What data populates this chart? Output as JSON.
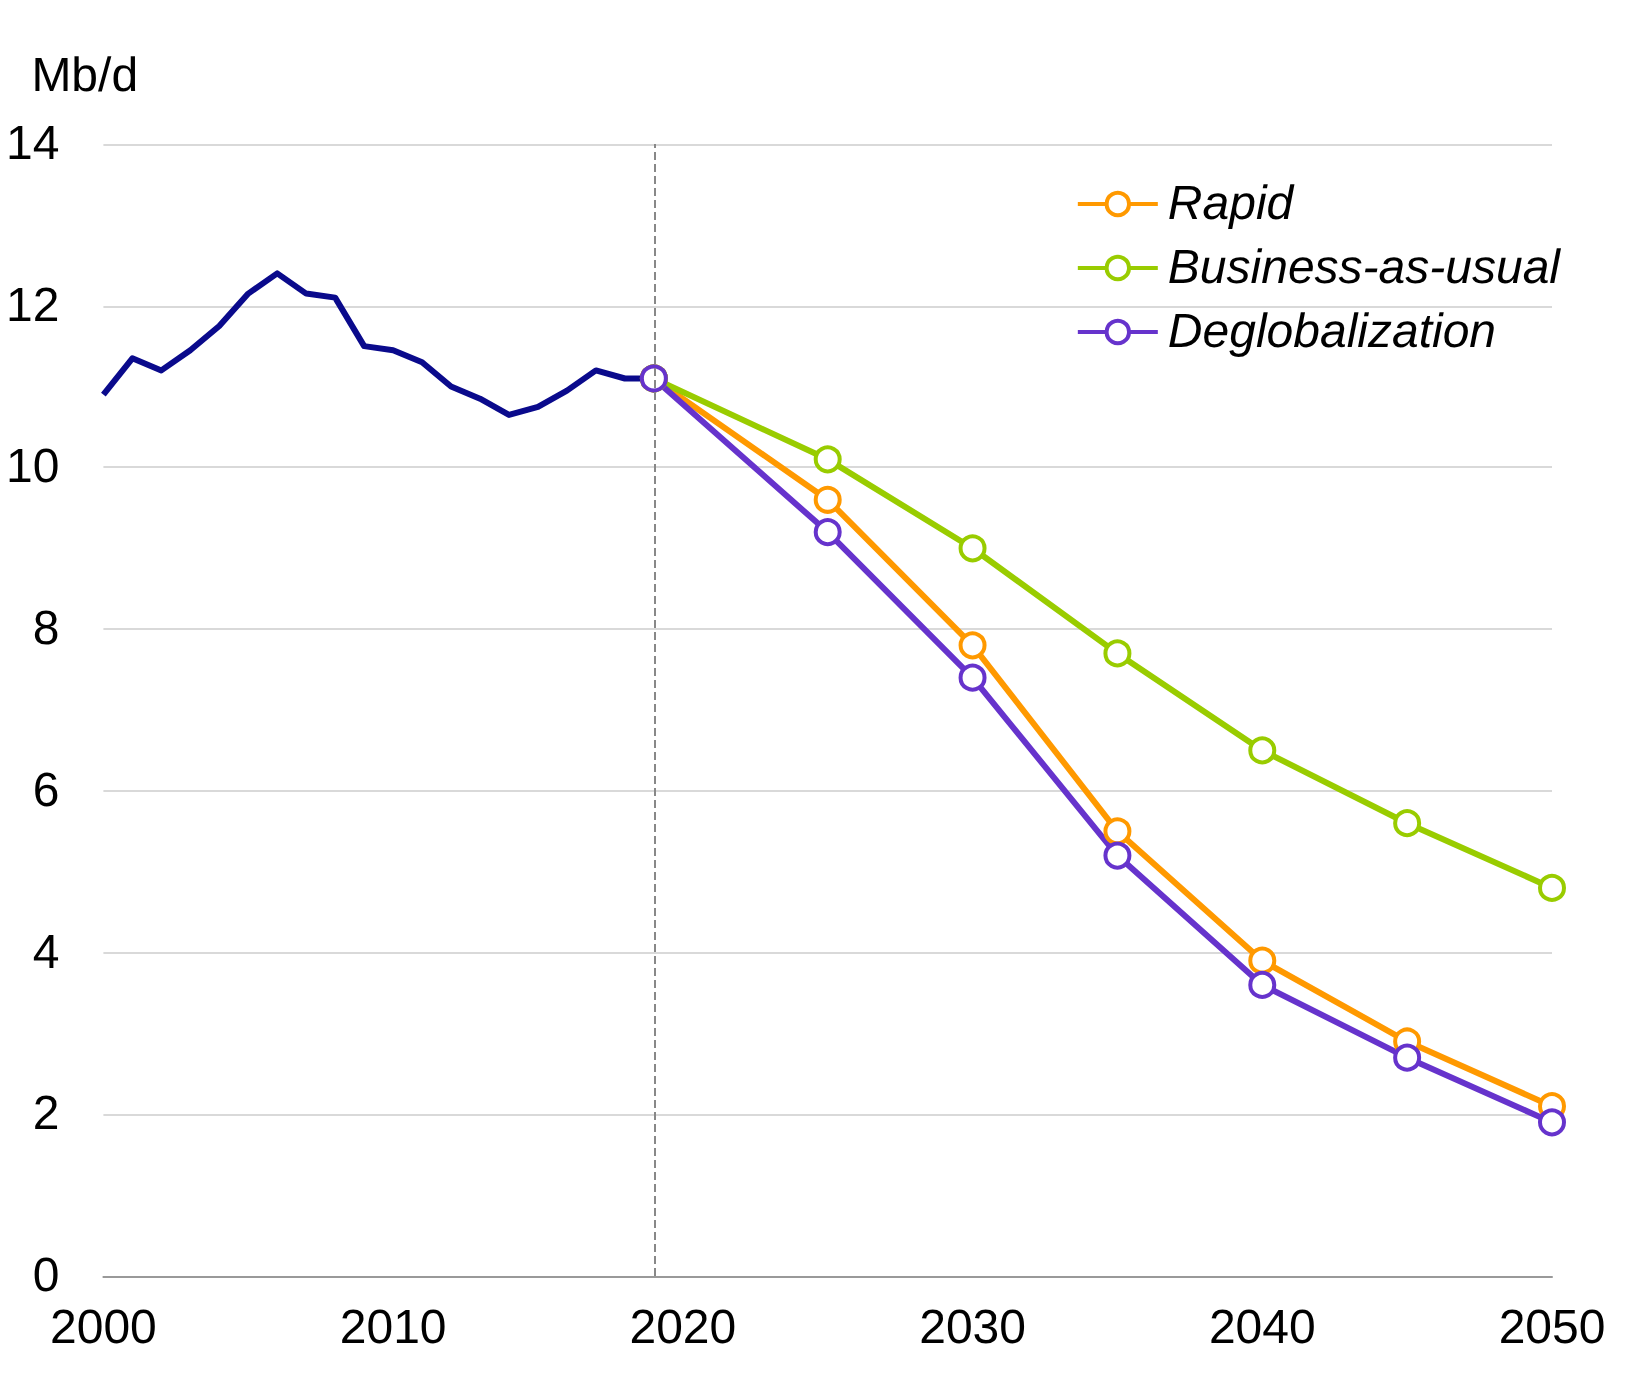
{
  "chart_data": {
    "type": "line",
    "ylabel": "Mb/d",
    "xlim": [
      2000,
      2050
    ],
    "xticks": [
      2000,
      2010,
      2020,
      2030,
      2040,
      2050
    ],
    "ylim": [
      0,
      14
    ],
    "yticks": [
      0,
      2,
      4,
      6,
      8,
      10,
      12,
      14
    ],
    "grid": "y",
    "legend": "top right",
    "series": [
      {
        "color": "#0a0a8c",
        "marker": "none",
        "x": [
          2000,
          2001,
          2002,
          2003,
          2004,
          2005,
          2006,
          2007,
          2008,
          2009,
          2010,
          2011,
          2012,
          2013,
          2014,
          2015,
          2016,
          2017,
          2018,
          2019
        ],
        "values": [
          10.9,
          11.35,
          11.2,
          11.45,
          11.75,
          12.15,
          12.4,
          12.15,
          12.1,
          11.5,
          11.45,
          11.3,
          11.0,
          10.85,
          10.65,
          10.75,
          10.95,
          11.2,
          11.1,
          11.1
        ]
      },
      {
        "name": "Rapid",
        "color": "#ff9900",
        "marker": "circle",
        "x": [
          2019,
          2025,
          2030,
          2035,
          2040,
          2045,
          2050
        ],
        "values": [
          11.1,
          9.6,
          7.8,
          5.5,
          3.9,
          2.9,
          2.1
        ]
      },
      {
        "name": "Business-as-usual",
        "color": "#99cc00",
        "marker": "circle",
        "x": [
          2019,
          2025,
          2030,
          2035,
          2040,
          2045,
          2050
        ],
        "values": [
          11.1,
          10.1,
          9.0,
          7.7,
          6.5,
          5.6,
          4.8
        ]
      },
      {
        "name": "Deglobalization",
        "color": "#6633cc",
        "marker": "circle",
        "x": [
          2019,
          2025,
          2030,
          2035,
          2040,
          2045,
          2050
        ],
        "values": [
          11.1,
          9.2,
          7.4,
          5.2,
          3.6,
          2.7,
          1.9
        ]
      }
    ],
    "ref_lines": [
      {
        "axis": "x",
        "value": 2019,
        "color": "#888888",
        "line_style": "dashed"
      }
    ]
  }
}
